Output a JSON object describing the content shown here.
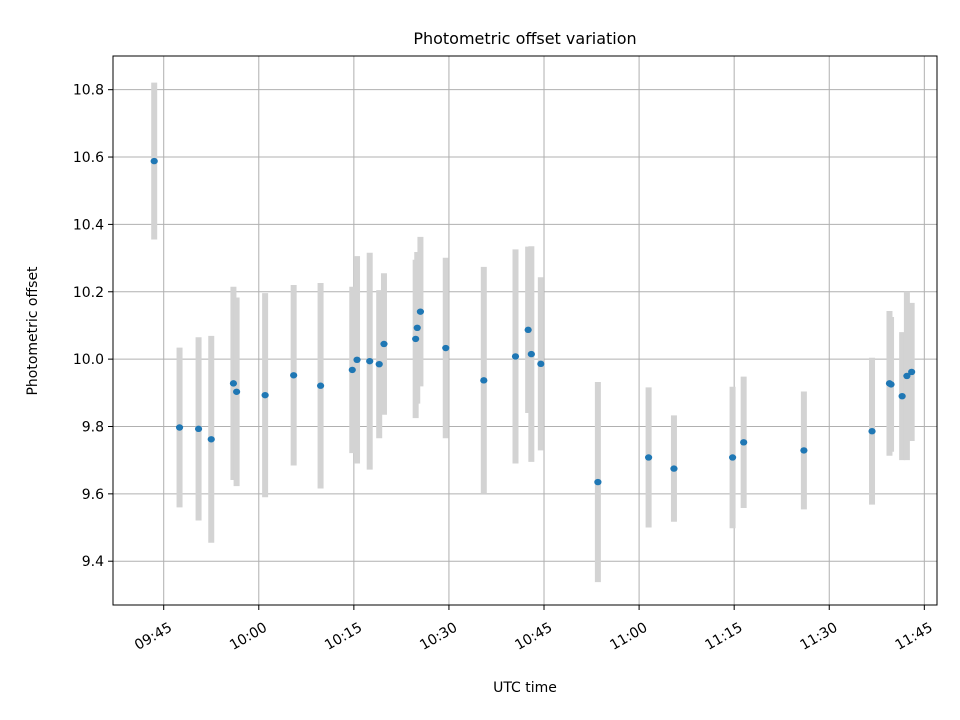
{
  "chart_data": {
    "type": "scatter",
    "title": "Photometric offset variation",
    "xlabel": "UTC time",
    "ylabel": "Photometric offset",
    "xlim": [
      "09:37",
      "11:47"
    ],
    "ylim": [
      9.27,
      10.9
    ],
    "xticks": [
      "09:45",
      "10:00",
      "10:15",
      "10:30",
      "10:45",
      "11:00",
      "11:15",
      "11:30",
      "11:45"
    ],
    "yticks": [
      9.4,
      9.6,
      9.8,
      10.0,
      10.2,
      10.4,
      10.6,
      10.8
    ],
    "grid": true,
    "legend": "none",
    "colors": {
      "points": "#1f77b4",
      "errorbars": "#d3d3d3",
      "grid": "#b0b0b0"
    },
    "points": [
      {
        "x": "09:43:30",
        "y": 10.588,
        "err": 0.233
      },
      {
        "x": "09:47:30",
        "y": 9.797,
        "err": 0.237
      },
      {
        "x": "09:50:30",
        "y": 9.793,
        "err": 0.272
      },
      {
        "x": "09:52:30",
        "y": 9.762,
        "err": 0.307
      },
      {
        "x": "09:56:00",
        "y": 9.928,
        "err": 0.287
      },
      {
        "x": "09:56:30",
        "y": 9.903,
        "err": 0.28
      },
      {
        "x": "10:01:00",
        "y": 9.893,
        "err": 0.303
      },
      {
        "x": "10:05:30",
        "y": 9.952,
        "err": 0.268
      },
      {
        "x": "10:09:45",
        "y": 9.921,
        "err": 0.305
      },
      {
        "x": "10:14:45",
        "y": 9.968,
        "err": 0.247
      },
      {
        "x": "10:15:30",
        "y": 9.998,
        "err": 0.308
      },
      {
        "x": "10:17:30",
        "y": 9.994,
        "err": 0.322
      },
      {
        "x": "10:19:00",
        "y": 9.985,
        "err": 0.22
      },
      {
        "x": "10:19:45",
        "y": 10.045,
        "err": 0.21
      },
      {
        "x": "10:24:45",
        "y": 10.06,
        "err": 0.235
      },
      {
        "x": "10:25:00",
        "y": 10.093,
        "err": 0.225
      },
      {
        "x": "10:25:30",
        "y": 10.141,
        "err": 0.222
      },
      {
        "x": "10:29:30",
        "y": 10.033,
        "err": 0.268
      },
      {
        "x": "10:35:30",
        "y": 9.937,
        "err": 0.337
      },
      {
        "x": "10:40:30",
        "y": 10.008,
        "err": 0.318
      },
      {
        "x": "10:42:30",
        "y": 10.087,
        "err": 0.247
      },
      {
        "x": "10:43:00",
        "y": 10.015,
        "err": 0.32
      },
      {
        "x": "10:44:30",
        "y": 9.986,
        "err": 0.257
      },
      {
        "x": "10:53:30",
        "y": 9.635,
        "err": 0.297
      },
      {
        "x": "11:01:30",
        "y": 9.708,
        "err": 0.208
      },
      {
        "x": "11:05:30",
        "y": 9.675,
        "err": 0.158
      },
      {
        "x": "11:14:45",
        "y": 9.708,
        "err": 0.21
      },
      {
        "x": "11:16:30",
        "y": 9.753,
        "err": 0.195
      },
      {
        "x": "11:26:00",
        "y": 9.729,
        "err": 0.175
      },
      {
        "x": "11:36:45",
        "y": 9.786,
        "err": 0.218
      },
      {
        "x": "11:39:30",
        "y": 9.928,
        "err": 0.215
      },
      {
        "x": "11:39:45",
        "y": 9.925,
        "err": 0.2
      },
      {
        "x": "11:41:30",
        "y": 9.89,
        "err": 0.19
      },
      {
        "x": "11:42:15",
        "y": 9.95,
        "err": 0.25
      },
      {
        "x": "11:43:00",
        "y": 9.962,
        "err": 0.205
      }
    ]
  }
}
